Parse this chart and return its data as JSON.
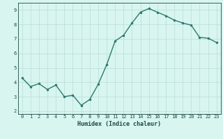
{
  "x": [
    0,
    1,
    2,
    3,
    4,
    5,
    6,
    7,
    8,
    9,
    10,
    11,
    12,
    13,
    14,
    15,
    16,
    17,
    18,
    19,
    20,
    21,
    22,
    23
  ],
  "y": [
    4.3,
    3.7,
    3.9,
    3.5,
    3.8,
    3.0,
    3.1,
    2.4,
    2.8,
    3.85,
    5.2,
    6.85,
    7.25,
    8.1,
    8.85,
    9.1,
    8.85,
    8.6,
    8.3,
    8.1,
    7.95,
    7.1,
    7.05,
    6.75
  ],
  "line_color": "#2d7a6e",
  "marker": ".",
  "marker_size": 3,
  "bg_color": "#d8f5f0",
  "grid_color": "#b8ddd8",
  "axis_label_color": "#1a4a44",
  "tick_color": "#1a4a44",
  "xlabel": "Humidex (Indice chaleur)",
  "xlim": [
    -0.5,
    23.5
  ],
  "ylim": [
    1.8,
    9.5
  ],
  "yticks": [
    2,
    3,
    4,
    5,
    6,
    7,
    8,
    9
  ],
  "xticks": [
    0,
    1,
    2,
    3,
    4,
    5,
    6,
    7,
    8,
    9,
    10,
    11,
    12,
    13,
    14,
    15,
    16,
    17,
    18,
    19,
    20,
    21,
    22,
    23
  ],
  "linewidth": 1.0,
  "tick_fontsize": 5.0,
  "xlabel_fontsize": 6.0
}
